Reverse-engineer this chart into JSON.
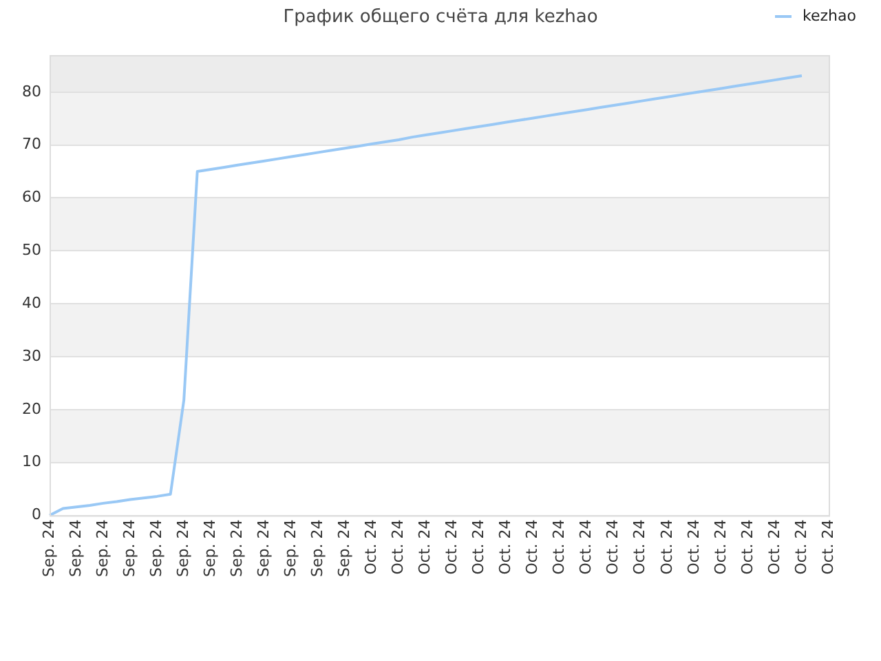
{
  "chart_data": {
    "type": "line",
    "title": "График общего счёта для kezhao",
    "categories": [
      "Sep. 24",
      null,
      "Sep. 24",
      null,
      "Sep. 24",
      null,
      "Sep. 24",
      null,
      "Sep. 24",
      null,
      "Sep. 24",
      null,
      "Sep. 24",
      null,
      "Sep. 24",
      null,
      "Sep. 24",
      null,
      "Sep. 24",
      null,
      "Sep. 24",
      null,
      "Sep. 24",
      null,
      "Oct. 24",
      null,
      "Oct. 24",
      null,
      "Oct. 24",
      null,
      "Oct. 24",
      null,
      "Oct. 24",
      null,
      "Oct. 24",
      null,
      "Oct. 24",
      null,
      "Oct. 24",
      null,
      "Oct. 24",
      null,
      "Oct. 24",
      null,
      "Oct. 24",
      null,
      "Oct. 24",
      null,
      "Oct. 24",
      null,
      "Oct. 24",
      null,
      "Oct. 24",
      null,
      "Oct. 24",
      null,
      "Oct. 24",
      null,
      "Oct. 24"
    ],
    "series": [
      {
        "name": "kezhao",
        "color": "#99c8f5",
        "values": [
          0,
          1.3,
          1.6,
          1.9,
          2.3,
          2.6,
          3.0,
          3.3,
          3.6,
          4.0,
          21.8,
          65.0,
          65.4,
          65.8,
          66.2,
          66.6,
          67.0,
          67.4,
          67.8,
          68.2,
          68.6,
          69.0,
          69.4,
          69.8,
          70.2,
          70.6,
          71.0,
          71.5,
          71.9,
          72.3,
          72.7,
          73.1,
          73.5,
          73.9,
          74.3,
          74.7,
          75.1,
          75.5,
          75.9,
          76.3,
          76.7,
          77.1,
          77.5,
          77.9,
          78.3,
          78.7,
          79.1,
          79.5,
          79.9,
          80.3,
          80.7,
          81.1,
          81.5,
          81.9,
          82.3,
          82.7,
          83.1,
          null,
          null
        ]
      }
    ],
    "ylim": [
      0,
      87
    ],
    "yticks": [
      0,
      10,
      20,
      30,
      40,
      50,
      60,
      70,
      80
    ],
    "bands": [
      {
        "axis": "y",
        "from": 10,
        "to": 20,
        "color": "#f2f2f2"
      },
      {
        "axis": "y",
        "from": 30,
        "to": 40,
        "color": "#f2f2f2"
      },
      {
        "axis": "y",
        "from": 50,
        "to": 60,
        "color": "#f2f2f2"
      },
      {
        "axis": "y",
        "from": 70,
        "to": 80,
        "color": "#f2f2f2"
      },
      {
        "axis": "y",
        "from": 80,
        "to": 87,
        "color": "#ececec"
      }
    ],
    "grid": "y",
    "legend": "top right",
    "marker": "none",
    "line_style": "solid"
  }
}
